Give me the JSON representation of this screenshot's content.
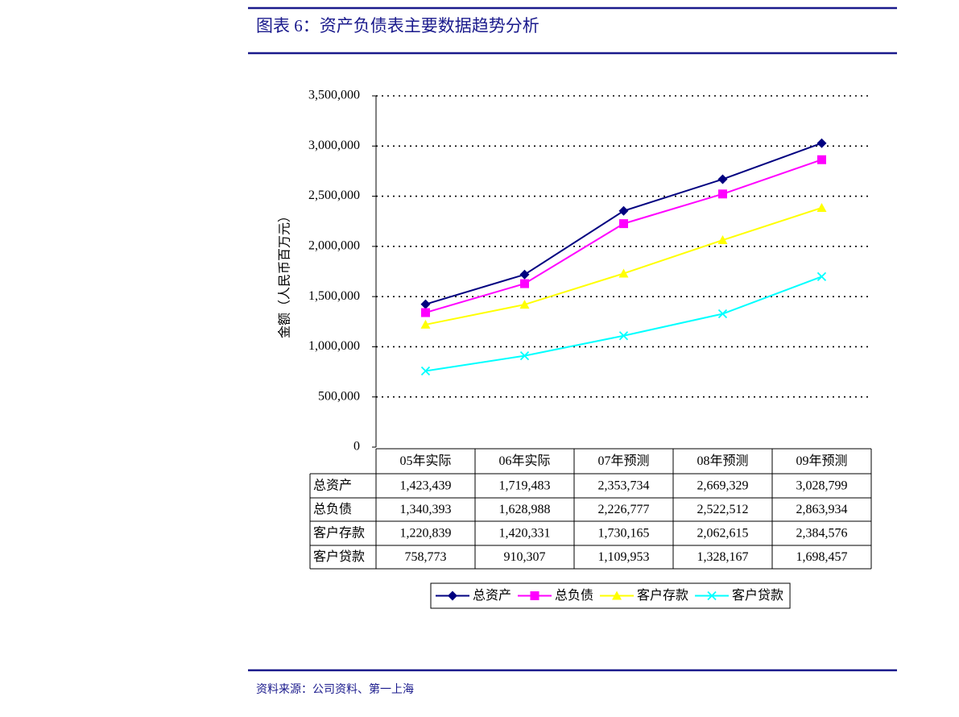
{
  "chart_data": {
    "type": "line",
    "title": "图表 6：资产负债表主要数据趋势分析",
    "y_label": "金额（人民币百万元）",
    "source": "资料来源：公司资料、第一上海",
    "categories": [
      "05年实际",
      "06年实际",
      "07年预测",
      "08年预测",
      "09年预测"
    ],
    "series": [
      {
        "name": "总资产",
        "color": "#000080",
        "marker": "diamond",
        "values": [
          1423439,
          1719483,
          2353734,
          2669329,
          3028799
        ],
        "value_labels": [
          "1,423,439",
          "1,719,483",
          "2,353,734",
          "2,669,329",
          "3,028,799"
        ]
      },
      {
        "name": "总负债",
        "color": "#ff00ff",
        "marker": "square",
        "values": [
          1340393,
          1628988,
          2226777,
          2522512,
          2863934
        ],
        "value_labels": [
          "1,340,393",
          "1,628,988",
          "2,226,777",
          "2,522,512",
          "2,863,934"
        ]
      },
      {
        "name": "客户存款",
        "color": "#ffff00",
        "marker": "triangle",
        "values": [
          1220839,
          1420331,
          1730165,
          2062615,
          2384576
        ],
        "value_labels": [
          "1,220,839",
          "1,420,331",
          "1,730,165",
          "2,062,615",
          "2,384,576"
        ]
      },
      {
        "name": "客户贷款",
        "color": "#00ffff",
        "marker": "x",
        "values": [
          758773,
          910307,
          1109953,
          1328167,
          1698457
        ],
        "value_labels": [
          "758,773",
          "910,307",
          "1,109,953",
          "1,328,167",
          "1,698,457"
        ]
      }
    ],
    "ylim": [
      0,
      3500000
    ],
    "yticks": [
      0,
      {
        "value": 500000,
        "label": "500,000"
      },
      {
        "value": 1000000,
        "label": "1,000,000"
      },
      {
        "value": 1500000,
        "label": "1,500,000"
      },
      {
        "value": 2000000,
        "label": "2,000,000"
      },
      {
        "value": 2500000,
        "label": "2,500,000"
      },
      {
        "value": 3000000,
        "label": "3,000,000"
      },
      {
        "value": 3500000,
        "label": "3,500,000"
      }
    ],
    "grid": true
  }
}
